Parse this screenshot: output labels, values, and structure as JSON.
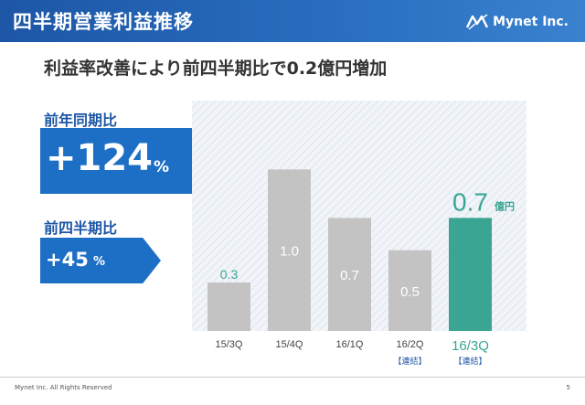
{
  "header": {
    "title": "四半期営業利益推移",
    "logo_text": "Mynet Inc."
  },
  "subtitle": "利益率改善により前四半期比で0.2億円増加",
  "kpi": {
    "yoy_label": "前年同期比",
    "yoy_value": "+124",
    "yoy_unit": "%",
    "qoq_label": "前四半期比",
    "qoq_value": "+45",
    "qoq_unit": "%"
  },
  "chart_data": {
    "type": "bar",
    "categories": [
      "15/3Q",
      "15/4Q",
      "16/1Q",
      "16/2Q",
      "16/3Q"
    ],
    "values": [
      0.3,
      1.0,
      0.7,
      0.5,
      0.7
    ],
    "value_labels": [
      "0.3",
      "1.0",
      "0.7",
      "0.5",
      "0.7"
    ],
    "sublabels": [
      "",
      "",
      "",
      "【連結】",
      "【連結】"
    ],
    "highlight_unit": "億円",
    "ylim": [
      0,
      1.2
    ],
    "colors": {
      "highlight": "#3aa592",
      "normal": "#c3c3c3",
      "highlight_text": "#3aa592",
      "normal_text": "#ffffff"
    }
  },
  "footer": {
    "copyright": "Mynet Inc. All Rights Reserved",
    "page": "5"
  }
}
